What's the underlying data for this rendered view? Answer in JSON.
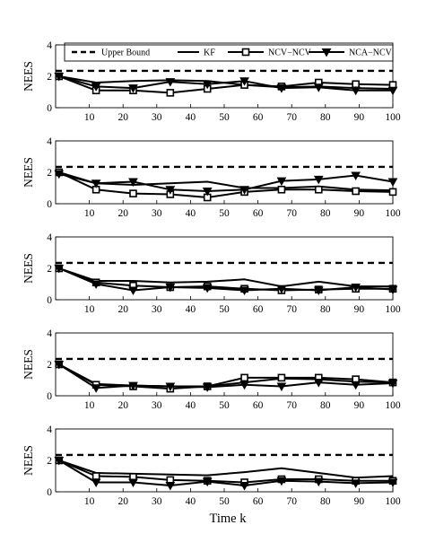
{
  "figure": {
    "xlabel": "Time k",
    "ylabel": "NEES"
  },
  "legend": {
    "entries": [
      {
        "label": "Upper Bound",
        "style": "dashed",
        "marker": "none"
      },
      {
        "label": "KF",
        "style": "solid",
        "marker": "none"
      },
      {
        "label": "NCV−NCV",
        "style": "solid",
        "marker": "square"
      },
      {
        "label": "NCA−NCV",
        "style": "solid",
        "marker": "triangle-down"
      }
    ],
    "placement": "top"
  },
  "chart_data": [
    {
      "type": "line",
      "ylabel": "NEES",
      "xlabel": "",
      "xlim": [
        0,
        100
      ],
      "ylim": [
        0,
        4
      ],
      "x_ticks": [
        10,
        20,
        30,
        40,
        50,
        60,
        70,
        80,
        90,
        100
      ],
      "y_ticks": [
        0,
        2,
        4
      ],
      "grid": false,
      "series": [
        {
          "name": "Upper Bound",
          "x": [
            0,
            100
          ],
          "values": [
            2.35,
            2.35
          ]
        },
        {
          "name": "KF",
          "x": [
            1,
            12,
            23,
            34,
            45,
            56,
            67,
            78,
            89,
            100
          ],
          "values": [
            2.0,
            1.6,
            1.7,
            1.75,
            1.7,
            1.45,
            1.3,
            1.35,
            1.25,
            1.2
          ]
        },
        {
          "name": "NCV−NCV",
          "x": [
            1,
            12,
            23,
            34,
            45,
            56,
            67,
            78,
            89,
            100
          ],
          "values": [
            2.0,
            1.1,
            1.1,
            0.95,
            1.2,
            1.45,
            1.35,
            1.6,
            1.5,
            1.45
          ]
        },
        {
          "name": "NCA−NCV",
          "x": [
            1,
            12,
            23,
            34,
            45,
            56,
            67,
            78,
            89,
            100
          ],
          "values": [
            2.0,
            1.35,
            1.25,
            1.65,
            1.5,
            1.7,
            1.25,
            1.3,
            1.1,
            1.1
          ]
        }
      ]
    },
    {
      "type": "line",
      "ylabel": "NEES",
      "xlabel": "",
      "xlim": [
        0,
        100
      ],
      "ylim": [
        0,
        4
      ],
      "x_ticks": [
        10,
        20,
        30,
        40,
        50,
        60,
        70,
        80,
        90,
        100
      ],
      "y_ticks": [
        0,
        2,
        4
      ],
      "grid": false,
      "series": [
        {
          "name": "Upper Bound",
          "x": [
            0,
            100
          ],
          "values": [
            2.35,
            2.35
          ]
        },
        {
          "name": "KF",
          "x": [
            1,
            12,
            23,
            34,
            45,
            56,
            67,
            78,
            89,
            100
          ],
          "values": [
            2.0,
            1.3,
            1.2,
            1.3,
            1.4,
            1.0,
            1.0,
            1.1,
            0.9,
            0.85
          ]
        },
        {
          "name": "NCV−NCV",
          "x": [
            1,
            12,
            23,
            34,
            45,
            56,
            67,
            78,
            89,
            100
          ],
          "values": [
            2.0,
            0.9,
            0.65,
            0.6,
            0.4,
            0.75,
            0.9,
            0.9,
            0.8,
            0.75
          ]
        },
        {
          "name": "NCA−NCV",
          "x": [
            1,
            12,
            23,
            34,
            45,
            56,
            67,
            78,
            89,
            100
          ],
          "values": [
            1.9,
            1.3,
            1.4,
            0.9,
            0.8,
            0.9,
            1.45,
            1.55,
            1.8,
            1.4
          ]
        }
      ]
    },
    {
      "type": "line",
      "ylabel": "NEES",
      "xlabel": "",
      "xlim": [
        0,
        100
      ],
      "ylim": [
        0,
        4
      ],
      "x_ticks": [
        10,
        20,
        30,
        40,
        50,
        60,
        70,
        80,
        90,
        100
      ],
      "y_ticks": [
        0,
        2,
        4
      ],
      "grid": false,
      "series": [
        {
          "name": "Upper Bound",
          "x": [
            0,
            100
          ],
          "values": [
            2.35,
            2.35
          ]
        },
        {
          "name": "KF",
          "x": [
            1,
            12,
            23,
            34,
            45,
            56,
            67,
            78,
            89,
            100
          ],
          "values": [
            2.0,
            1.2,
            1.2,
            1.1,
            1.15,
            1.3,
            0.85,
            1.15,
            0.85,
            0.85
          ]
        },
        {
          "name": "NCV−NCV",
          "x": [
            1,
            12,
            23,
            34,
            45,
            56,
            67,
            78,
            89,
            100
          ],
          "values": [
            2.0,
            1.1,
            0.9,
            0.8,
            0.85,
            0.7,
            0.6,
            0.65,
            0.7,
            0.7
          ]
        },
        {
          "name": "NCA−NCV",
          "x": [
            1,
            12,
            23,
            34,
            45,
            56,
            67,
            78,
            89,
            100
          ],
          "values": [
            2.0,
            1.0,
            0.6,
            0.8,
            0.75,
            0.6,
            0.7,
            0.6,
            0.8,
            0.65
          ]
        }
      ]
    },
    {
      "type": "line",
      "ylabel": "NEES",
      "xlabel": "",
      "xlim": [
        0,
        100
      ],
      "ylim": [
        0,
        4
      ],
      "x_ticks": [
        10,
        20,
        30,
        40,
        50,
        60,
        70,
        80,
        90,
        100
      ],
      "y_ticks": [
        0,
        2,
        4
      ],
      "grid": false,
      "series": [
        {
          "name": "Upper Bound",
          "x": [
            0,
            100
          ],
          "values": [
            2.35,
            2.35
          ]
        },
        {
          "name": "KF",
          "x": [
            1,
            12,
            23,
            34,
            45,
            56,
            67,
            78,
            89,
            100
          ],
          "values": [
            2.0,
            0.75,
            0.65,
            0.6,
            0.6,
            0.85,
            1.1,
            1.05,
            0.9,
            0.85
          ]
        },
        {
          "name": "NCV−NCV",
          "x": [
            1,
            12,
            23,
            34,
            45,
            56,
            67,
            78,
            89,
            100
          ],
          "values": [
            2.0,
            0.7,
            0.6,
            0.45,
            0.6,
            1.15,
            1.15,
            1.15,
            1.05,
            0.85
          ]
        },
        {
          "name": "NCA−NCV",
          "x": [
            1,
            12,
            23,
            34,
            45,
            56,
            67,
            78,
            89,
            100
          ],
          "values": [
            2.0,
            0.5,
            0.65,
            0.6,
            0.55,
            0.7,
            0.6,
            0.85,
            0.7,
            0.8
          ]
        }
      ]
    },
    {
      "type": "line",
      "ylabel": "NEES",
      "xlabel": "Time k",
      "xlim": [
        0,
        100
      ],
      "ylim": [
        0,
        4
      ],
      "x_ticks": [
        10,
        20,
        30,
        40,
        50,
        60,
        70,
        80,
        90,
        100
      ],
      "y_ticks": [
        0,
        2,
        4
      ],
      "grid": false,
      "series": [
        {
          "name": "Upper Bound",
          "x": [
            0,
            100
          ],
          "values": [
            2.35,
            2.35
          ]
        },
        {
          "name": "KF",
          "x": [
            1,
            12,
            23,
            34,
            45,
            56,
            67,
            78,
            89,
            100
          ],
          "values": [
            2.0,
            1.2,
            1.15,
            1.1,
            1.05,
            1.25,
            1.5,
            1.2,
            0.9,
            1.0
          ]
        },
        {
          "name": "NCV−NCV",
          "x": [
            1,
            12,
            23,
            34,
            45,
            56,
            67,
            78,
            89,
            100
          ],
          "values": [
            2.0,
            1.0,
            0.95,
            0.75,
            0.7,
            0.6,
            0.8,
            0.8,
            0.7,
            0.7
          ]
        },
        {
          "name": "NCA−NCV",
          "x": [
            1,
            12,
            23,
            34,
            45,
            56,
            67,
            78,
            89,
            100
          ],
          "values": [
            2.0,
            0.6,
            0.6,
            0.4,
            0.65,
            0.4,
            0.7,
            0.65,
            0.55,
            0.6
          ]
        }
      ]
    }
  ]
}
